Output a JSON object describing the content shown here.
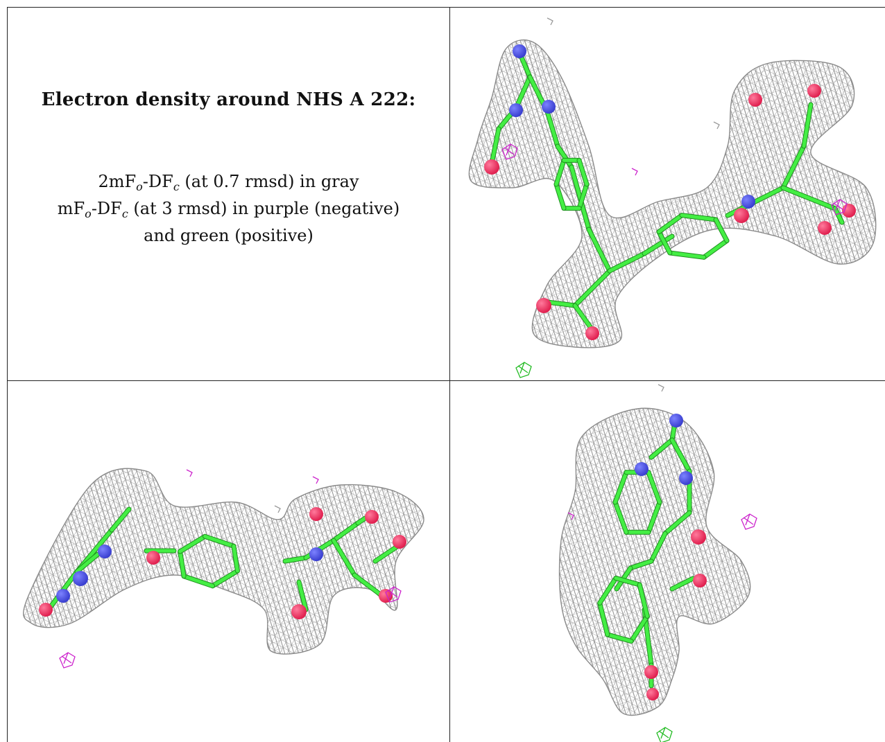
{
  "caption": {
    "title": "Electron density around NHS A 222:",
    "line1": {
      "pre": "2mF",
      "sub1": "o",
      "mid": "-DF",
      "sub2": "c",
      "post": " (at 0.7 rmsd) in gray"
    },
    "line2": {
      "pre": "mF",
      "sub1": "o",
      "mid": "-DF",
      "sub2": "c",
      "post": " (at 3 rmsd) in purple (negative)"
    },
    "line3": "and green (positive)"
  },
  "colors": {
    "mesh_gray": "#8a8a8a",
    "carbon_green": "#44ee44",
    "nitrogen_blue": "#3a3fd0",
    "oxygen_red": "#e0204f",
    "negative_purple": "#cc22cc",
    "positive_green": "#22bb22",
    "border": "#222222"
  },
  "views": [
    {
      "id": "view-top-right",
      "label": ""
    },
    {
      "id": "view-bottom-left",
      "label": ""
    },
    {
      "id": "view-bottom-right",
      "label": ""
    }
  ]
}
